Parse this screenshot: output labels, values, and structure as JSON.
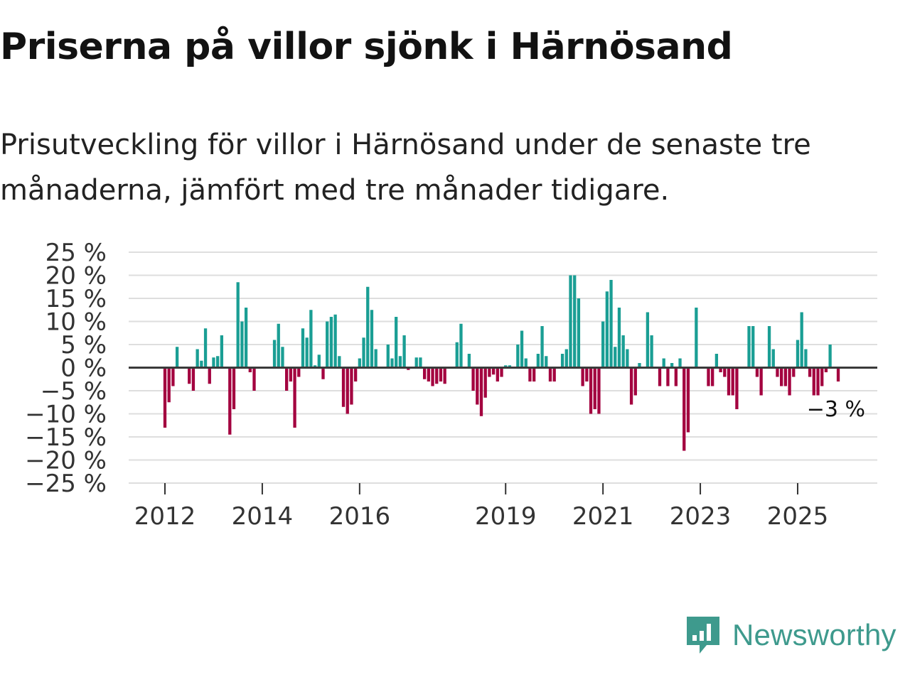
{
  "title": "Priserna på villor sjönk i Härnösand",
  "subtitle": "Prisutveckling för villor i Härnösand under de senaste tre månaderna, jämfört med tre månader tidigare.",
  "brand": {
    "name": "Newsworthy",
    "icon": "bar-chart-speech-bubble-icon",
    "color": "#3e9a8d"
  },
  "chart_data": {
    "type": "bar",
    "title": "Priserna på villor sjönk i Härnösand",
    "xlabel": "",
    "ylabel": "",
    "ylim": [
      -25,
      25
    ],
    "yticks": [
      25,
      20,
      15,
      10,
      5,
      0,
      -5,
      -10,
      -15,
      -20,
      -25
    ],
    "ytick_labels": [
      "25 %",
      "20 %",
      "15 %",
      "10 %",
      "5 %",
      "0 %",
      "−5 %",
      "−10 %",
      "−15 %",
      "−20 %",
      "−25 %"
    ],
    "xticks": [
      2012,
      2014,
      2016,
      2019,
      2021,
      2023,
      2025
    ],
    "xtick_labels": [
      "2012",
      "2014",
      "2016",
      "2019",
      "2021",
      "2023",
      "2025"
    ],
    "x_start": "2012-01",
    "frequency": "monthly",
    "positive_color": "#1a9e94",
    "negative_color": "#a3003f",
    "grid": true,
    "last_value_label": "−3 %",
    "values": [
      -13,
      -7.5,
      -4,
      4.5,
      0,
      0,
      -3.5,
      -5,
      4,
      1.5,
      8.5,
      -3.5,
      2.2,
      2.5,
      7,
      0,
      -14.5,
      -9,
      18.5,
      10,
      13,
      -1,
      -5,
      0,
      0,
      0,
      0,
      6,
      9.5,
      4.5,
      -5,
      -3,
      -13,
      -2,
      8.5,
      6.5,
      12.5,
      0.5,
      2.8,
      -2.5,
      10,
      11,
      11.5,
      2.5,
      -8.5,
      -10,
      -8,
      -3,
      2,
      6.5,
      17.5,
      12.5,
      4,
      0,
      0,
      5,
      2,
      11,
      2.5,
      7,
      -0.5,
      0,
      2.2,
      2.2,
      -2.5,
      -3,
      -4,
      -3.5,
      -3,
      -3.5,
      0,
      0,
      5.5,
      9.5,
      0,
      3,
      -5,
      -8,
      -10.5,
      -6.5,
      -2,
      -1.5,
      -3,
      -2,
      0.5,
      0.5,
      0,
      5,
      8,
      2,
      -3,
      -3,
      3,
      9,
      2.5,
      -3,
      -3,
      0,
      3,
      4,
      20,
      20,
      15,
      -4,
      -3,
      -10,
      -9,
      -10,
      10,
      16.5,
      19,
      4.5,
      13,
      7,
      4,
      -8,
      -6,
      1,
      0,
      12,
      7,
      0,
      -4,
      2,
      -4,
      1,
      -4,
      2,
      -18,
      -14,
      0,
      13,
      0,
      0,
      -4,
      -4,
      3,
      -1,
      -2,
      -6,
      -6,
      -9,
      0,
      0,
      9,
      9,
      -2,
      -6,
      0,
      9,
      4,
      -2,
      -4,
      -4,
      -6,
      -2,
      6,
      12,
      4,
      -2,
      -6,
      -6,
      -4,
      -1,
      5,
      0,
      -3
    ]
  }
}
